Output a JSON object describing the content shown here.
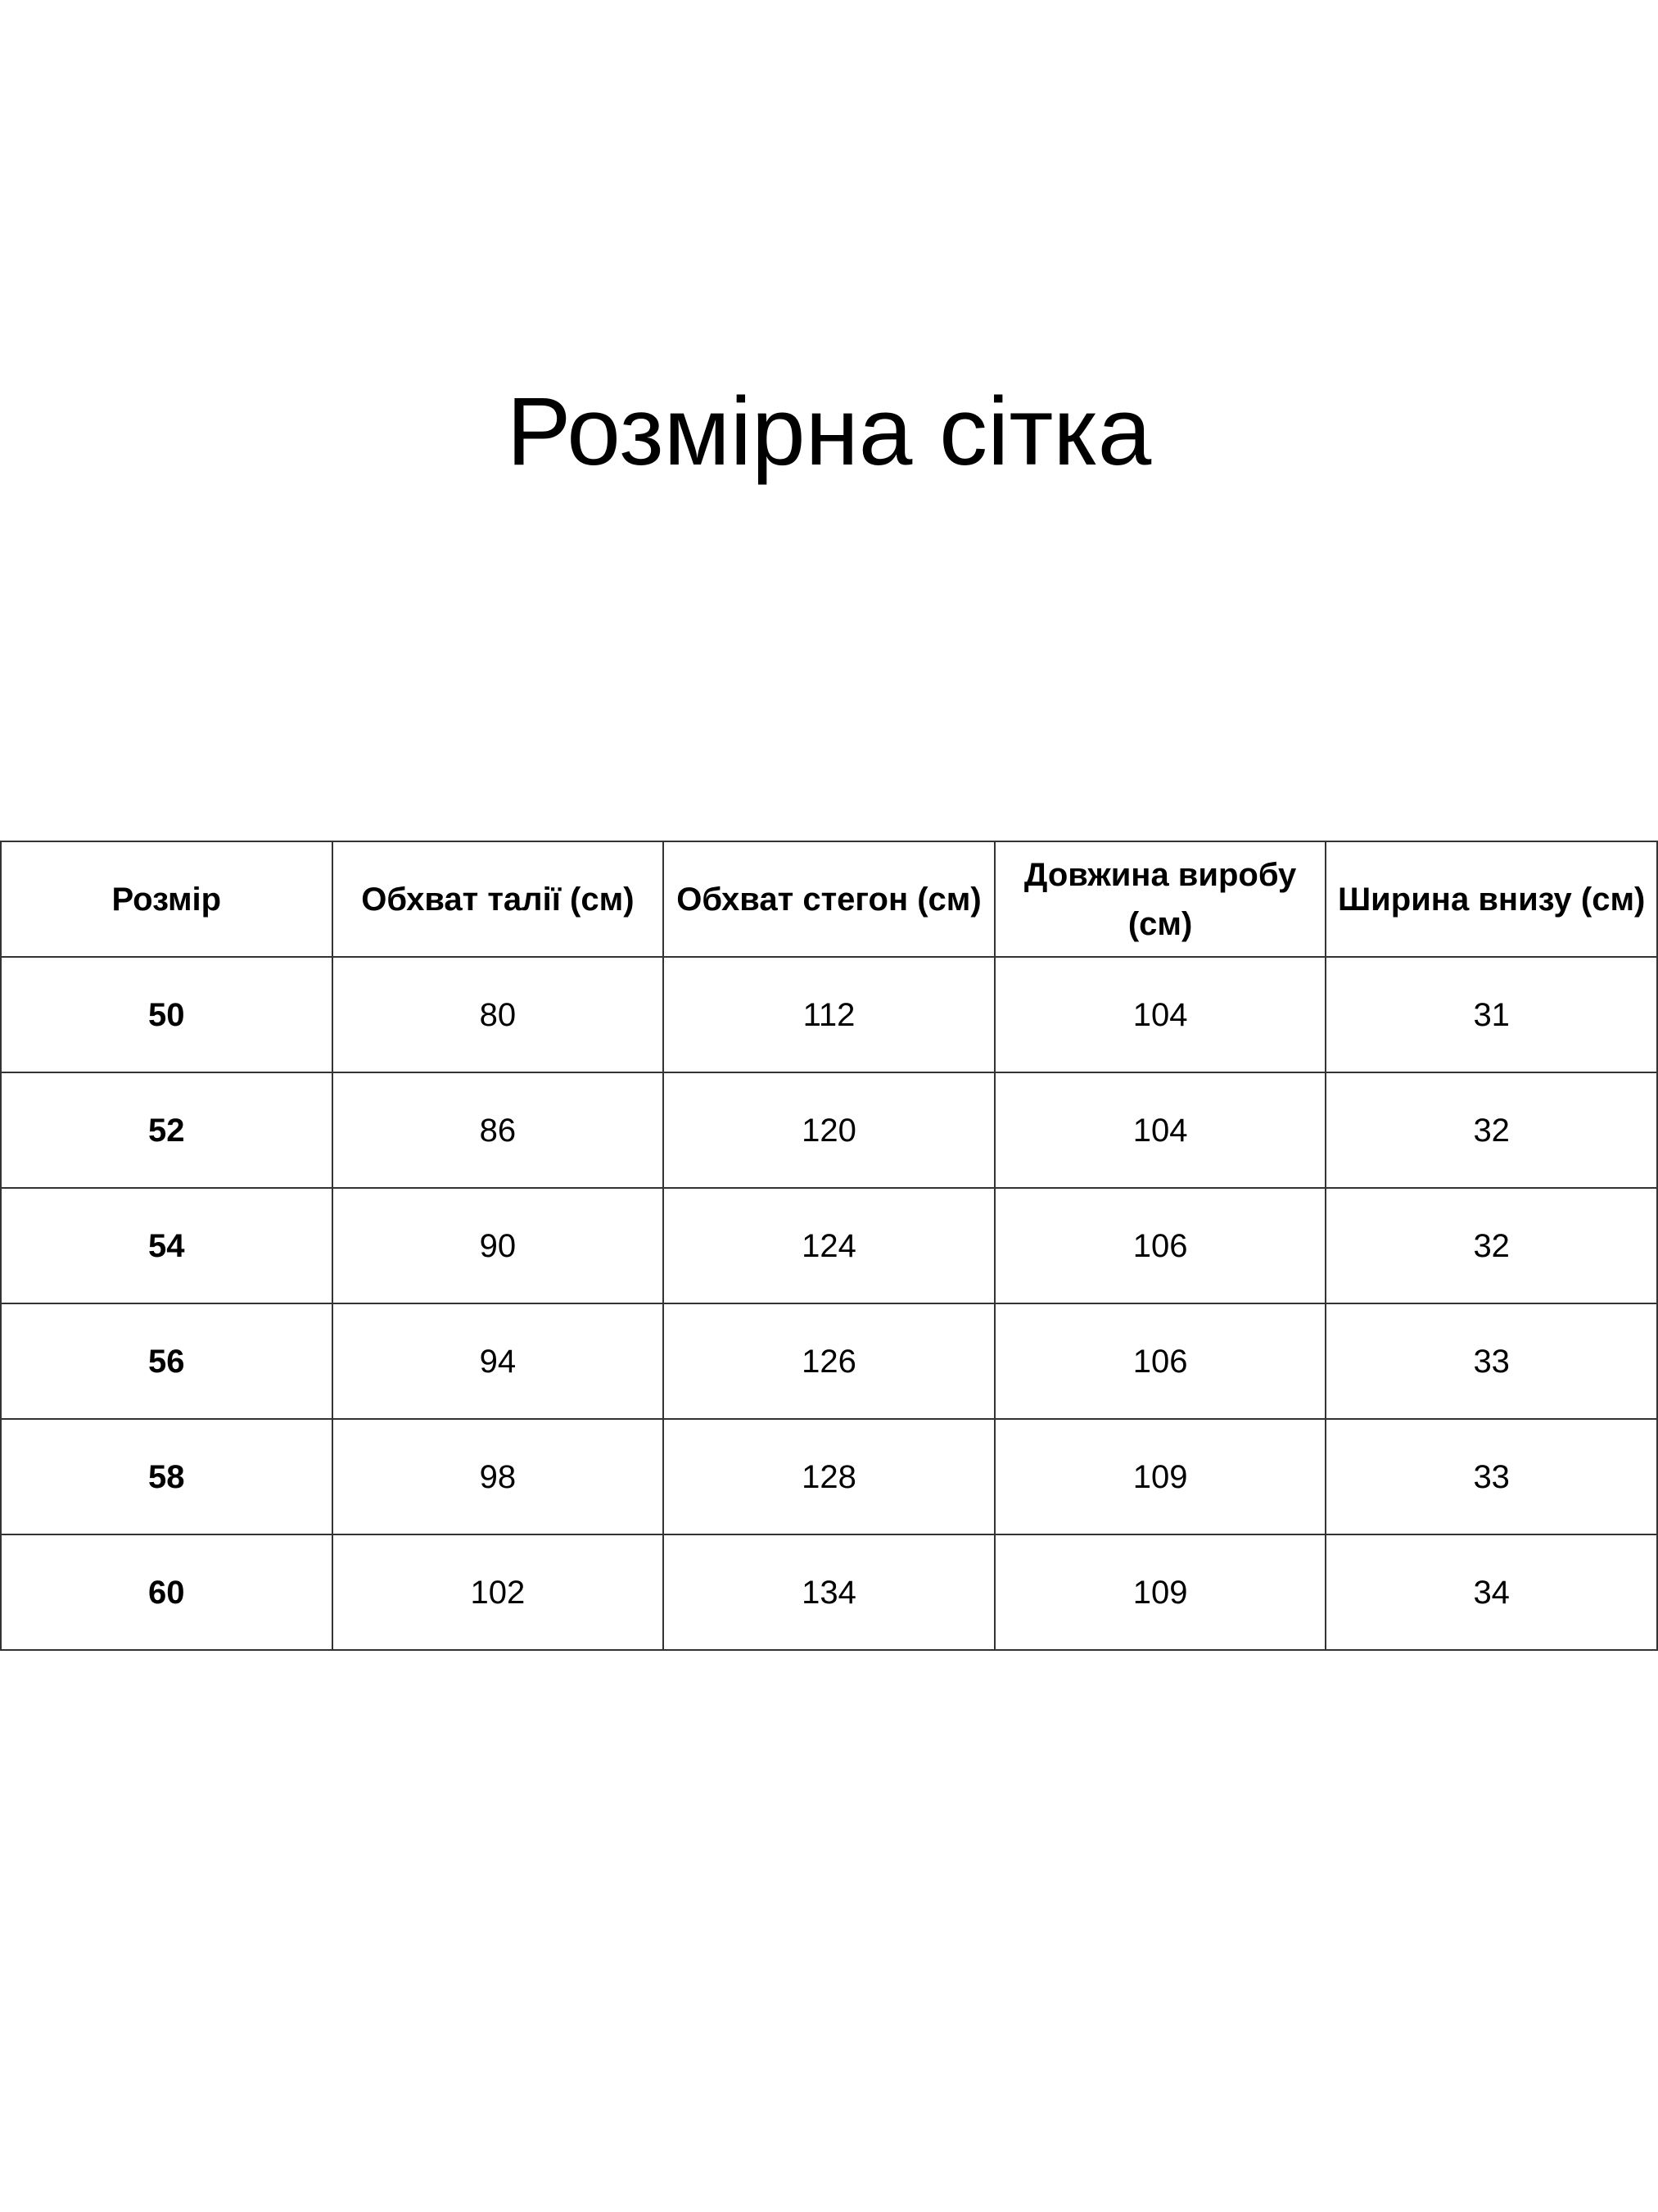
{
  "title": "Розмірна сітка",
  "table": {
    "headers": [
      "Розмір",
      "Обхват талії (см)",
      "Обхват стегон (см)",
      "Довжина виробу (см)",
      "Ширина внизу (см)"
    ],
    "rows": [
      [
        "50",
        "80",
        "112",
        "104",
        "31"
      ],
      [
        "52",
        "86",
        "120",
        "104",
        "32"
      ],
      [
        "54",
        "90",
        "124",
        "106",
        "32"
      ],
      [
        "56",
        "94",
        "126",
        "106",
        "33"
      ],
      [
        "58",
        "98",
        "128",
        "109",
        "33"
      ],
      [
        "60",
        "102",
        "134",
        "109",
        "34"
      ]
    ]
  }
}
